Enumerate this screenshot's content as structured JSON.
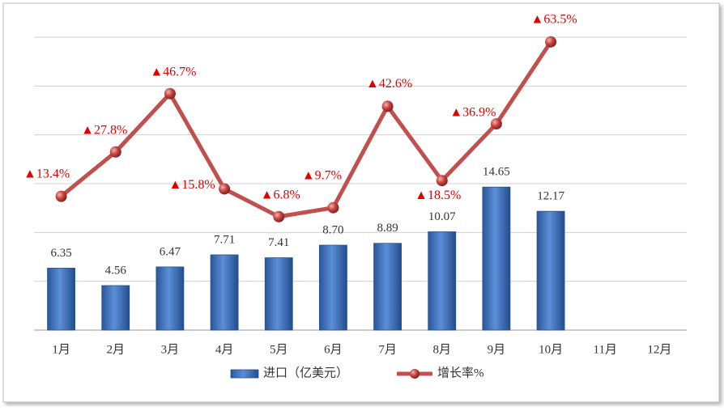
{
  "chart_data": {
    "type": "bar",
    "categories": [
      "1月",
      "2月",
      "3月",
      "4月",
      "5月",
      "6月",
      "7月",
      "8月",
      "9月",
      "10月",
      "11月",
      "12月"
    ],
    "series": [
      {
        "name": "进口（亿美元）",
        "type": "bar",
        "color": "#3f74c4",
        "values": [
          6.35,
          4.56,
          6.47,
          7.71,
          7.41,
          8.7,
          8.89,
          10.07,
          14.65,
          12.17,
          null,
          null
        ],
        "value_labels": [
          "6.35",
          "4.56",
          "6.47",
          "7.71",
          "7.41",
          "8.70",
          "8.89",
          "10.07",
          "14.65",
          "12.17",
          null,
          null
        ]
      },
      {
        "name": "增长率%",
        "type": "line",
        "axis": "y2",
        "color": "#c0504d",
        "values": [
          13.4,
          27.8,
          46.7,
          15.8,
          6.8,
          9.7,
          42.6,
          18.5,
          36.9,
          63.5,
          null,
          null
        ],
        "value_labels": [
          "▲13.4%",
          "▲27.8%",
          "▲46.7%",
          "▲15.8%",
          "▲6.8%",
          "▲9.7%",
          "▲42.6%",
          "▲18.5%",
          "▲36.9%",
          "▲63.5%",
          null,
          null
        ]
      }
    ],
    "ylim": [
      0,
      30
    ],
    "yticks": [
      0,
      5,
      10,
      15,
      20,
      25,
      30
    ],
    "y2lim": [
      -30,
      65
    ],
    "grid": true,
    "legend": "bottom"
  }
}
